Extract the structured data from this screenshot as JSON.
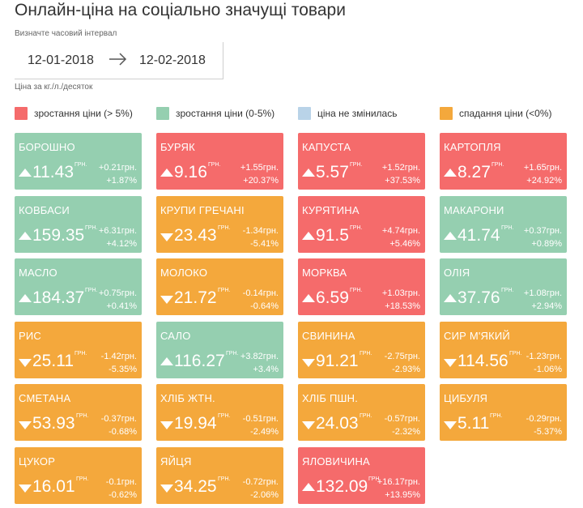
{
  "page": {
    "title": "Онлайн-ціна на соціально значущі товари",
    "interval_label": "Визначте часовий інтервал",
    "date_from": "12-01-2018",
    "date_to": "12-02-2018",
    "unit_label": "Ціна за кг./л./десяток"
  },
  "colors": {
    "up_high": "#f56b6b",
    "up_low": "#95cfb0",
    "unchanged": "#b9d3e8",
    "down": "#f4a83c"
  },
  "legend": [
    {
      "label": "зростання ціни (> 5%)",
      "color": "#f56b6b"
    },
    {
      "label": "зростання ціни (0-5%)",
      "color": "#95cfb0"
    },
    {
      "label": "ціна не змінилась",
      "color": "#b9d3e8"
    },
    {
      "label": "спадання ціни (<0%)",
      "color": "#f4a83c"
    }
  ],
  "unit": "ГРН.",
  "products": [
    {
      "name": "БОРОШНО",
      "price": "11.43",
      "abs": "+0.21грн.",
      "pct": "+1.87%",
      "status": "up-low",
      "dir": "up"
    },
    {
      "name": "БУРЯК",
      "price": "9.16",
      "abs": "+1.55грн.",
      "pct": "+20.37%",
      "status": "up-high",
      "dir": "up"
    },
    {
      "name": "КАПУСТА",
      "price": "5.57",
      "abs": "+1.52грн.",
      "pct": "+37.53%",
      "status": "up-high",
      "dir": "up"
    },
    {
      "name": "КАРТОПЛЯ",
      "price": "8.27",
      "abs": "+1.65грн.",
      "pct": "+24.92%",
      "status": "up-high",
      "dir": "up"
    },
    {
      "name": "КОВБАСИ",
      "price": "159.35",
      "abs": "+6.31грн.",
      "pct": "+4.12%",
      "status": "up-low",
      "dir": "up"
    },
    {
      "name": "КРУПИ ГРЕЧАНІ",
      "price": "23.43",
      "abs": "-1.34грн.",
      "pct": "-5.41%",
      "status": "down",
      "dir": "down"
    },
    {
      "name": "КУРЯТИНА",
      "price": "91.5",
      "abs": "+4.74грн.",
      "pct": "+5.46%",
      "status": "up-high",
      "dir": "up"
    },
    {
      "name": "МАКАРОНИ",
      "price": "41.74",
      "abs": "+0.37грн.",
      "pct": "+0.89%",
      "status": "up-low",
      "dir": "up"
    },
    {
      "name": "МАСЛО",
      "price": "184.37",
      "abs": "+0.75грн.",
      "pct": "+0.41%",
      "status": "up-low",
      "dir": "up"
    },
    {
      "name": "МОЛОКО",
      "price": "21.72",
      "abs": "-0.14грн.",
      "pct": "-0.64%",
      "status": "down",
      "dir": "down"
    },
    {
      "name": "МОРКВА",
      "price": "6.59",
      "abs": "+1.03грн.",
      "pct": "+18.53%",
      "status": "up-high",
      "dir": "up"
    },
    {
      "name": "ОЛІЯ",
      "price": "37.76",
      "abs": "+1.08грн.",
      "pct": "+2.94%",
      "status": "up-low",
      "dir": "up"
    },
    {
      "name": "РИС",
      "price": "25.11",
      "abs": "-1.42грн.",
      "pct": "-5.35%",
      "status": "down",
      "dir": "down"
    },
    {
      "name": "САЛО",
      "price": "116.27",
      "abs": "+3.82грн.",
      "pct": "+3.4%",
      "status": "up-low",
      "dir": "up"
    },
    {
      "name": "СВИНИНА",
      "price": "91.21",
      "abs": "-2.75грн.",
      "pct": "-2.93%",
      "status": "down",
      "dir": "down"
    },
    {
      "name": "СИР М'ЯКИЙ",
      "price": "114.56",
      "abs": "-1.23грн.",
      "pct": "-1.06%",
      "status": "down",
      "dir": "down"
    },
    {
      "name": "СМЕТАНА",
      "price": "53.93",
      "abs": "-0.37грн.",
      "pct": "-0.68%",
      "status": "down",
      "dir": "down"
    },
    {
      "name": "ХЛІБ ЖТН.",
      "price": "19.94",
      "abs": "-0.51грн.",
      "pct": "-2.49%",
      "status": "down",
      "dir": "down"
    },
    {
      "name": "ХЛІБ ПШН.",
      "price": "24.03",
      "abs": "-0.57грн.",
      "pct": "-2.32%",
      "status": "down",
      "dir": "down"
    },
    {
      "name": "ЦИБУЛЯ",
      "price": "5.11",
      "abs": "-0.29грн.",
      "pct": "-5.37%",
      "status": "down",
      "dir": "down"
    },
    {
      "name": "ЦУКОР",
      "price": "16.01",
      "abs": "-0.1грн.",
      "pct": "-0.62%",
      "status": "down",
      "dir": "down"
    },
    {
      "name": "ЯЙЦЯ",
      "price": "34.25",
      "abs": "-0.72грн.",
      "pct": "-2.06%",
      "status": "down",
      "dir": "down"
    },
    {
      "name": "ЯЛОВИЧИНА",
      "price": "132.09",
      "abs": "+16.17грн.",
      "pct": "+13.95%",
      "status": "up-high",
      "dir": "up"
    }
  ]
}
